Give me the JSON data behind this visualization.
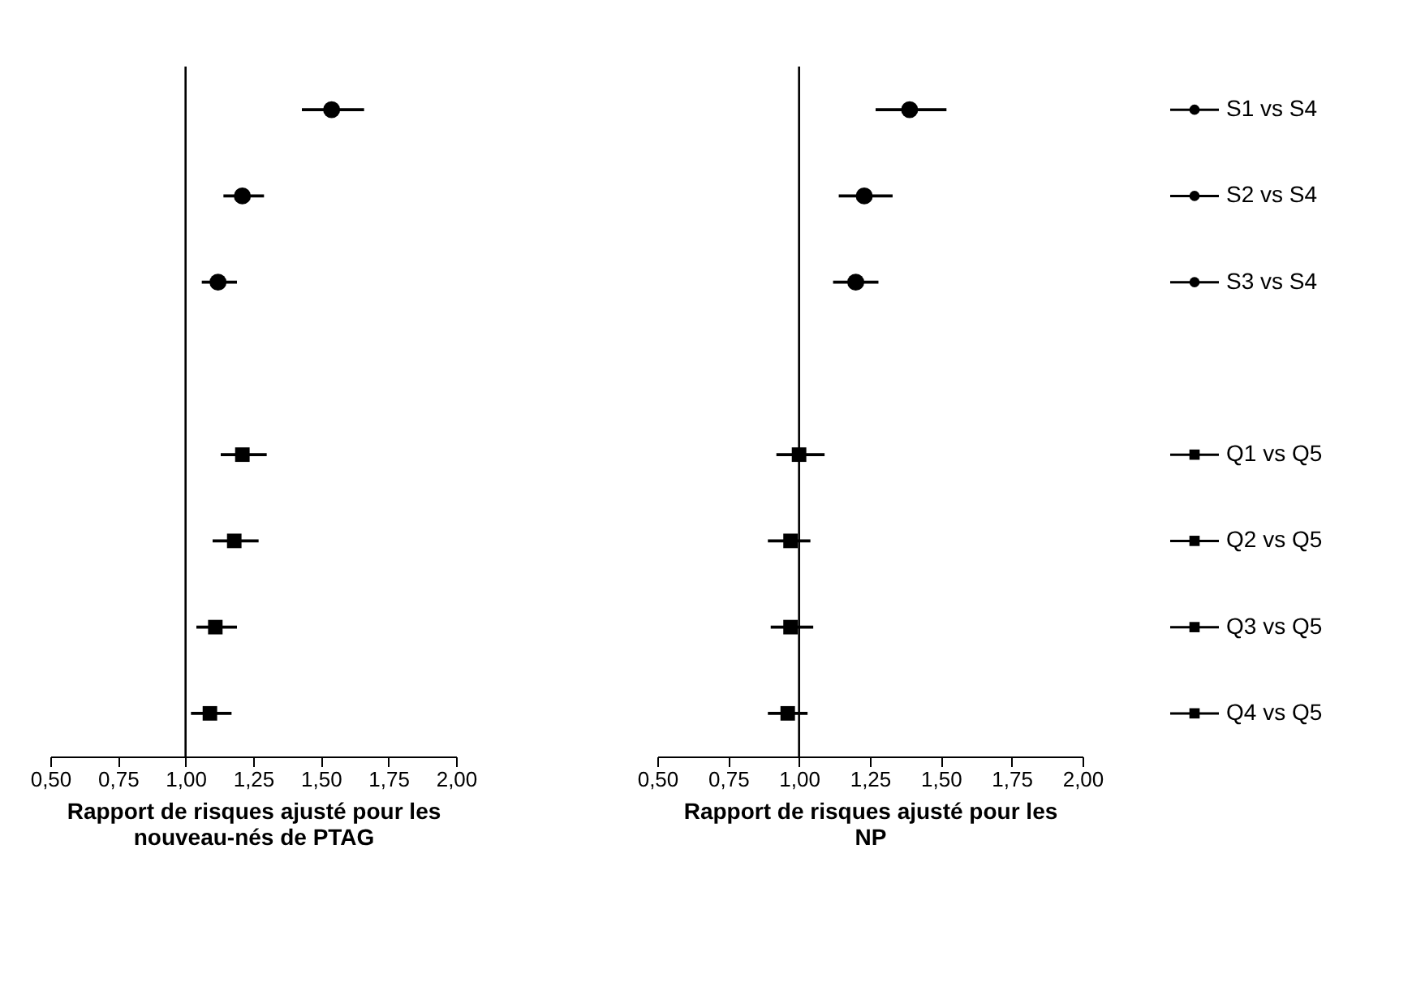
{
  "chart_data": [
    {
      "type": "scatter",
      "orientation": "horizontal",
      "tick_labels": "x",
      "grid": false,
      "categories": [
        null,
        null,
        null,
        null,
        null,
        null,
        null,
        null
      ],
      "series": [
        {
          "color": "#000000",
          "marker": "circle",
          "values": [
            1.54,
            1.21,
            1.12,
            null,
            null,
            null,
            null,
            null
          ],
          "errors": [
            [
              1.43,
              1.66
            ],
            [
              1.14,
              1.29
            ],
            [
              1.06,
              1.19
            ],
            null,
            null,
            null,
            null,
            null
          ]
        },
        {
          "color": "#000000",
          "marker": "square",
          "values": [
            null,
            null,
            null,
            null,
            1.21,
            1.18,
            1.11,
            1.09
          ],
          "errors": [
            null,
            null,
            null,
            null,
            [
              1.13,
              1.3
            ],
            [
              1.1,
              1.27
            ],
            [
              1.04,
              1.19
            ],
            [
              1.02,
              1.17
            ]
          ]
        }
      ],
      "xlim": [
        0.5,
        2.0
      ],
      "xticks": [
        {
          "value": 0.5,
          "label": "0,50"
        },
        {
          "value": 0.75,
          "label": "0,75"
        },
        {
          "value": 1.0,
          "label": "1,00"
        },
        {
          "value": 1.25,
          "label": "1,25"
        },
        {
          "value": 1.5,
          "label": "1,50"
        },
        {
          "value": 1.75,
          "label": "1,75"
        },
        {
          "value": 2.0,
          "label": "2,00"
        }
      ],
      "xlabel": "Rapport de risques ajusté pour les nouveau-nés de PTAG",
      "ref_lines": [
        {
          "axis": "x",
          "value": 1.0
        }
      ]
    },
    {
      "type": "scatter",
      "orientation": "horizontal",
      "grid": false,
      "categories": [
        "S1 vs S4",
        "S2 vs S4",
        "S3 vs S4",
        null,
        "Q1 vs Q5",
        "Q2 vs Q5",
        "Q3 vs Q5",
        "Q4 vs Q5"
      ],
      "series": [
        {
          "color": "#000000",
          "marker": "circle",
          "values": [
            1.39,
            1.23,
            1.2,
            null,
            null,
            null,
            null,
            null
          ],
          "errors": [
            [
              1.27,
              1.52
            ],
            [
              1.14,
              1.33
            ],
            [
              1.12,
              1.28
            ],
            null,
            null,
            null,
            null,
            null
          ]
        },
        {
          "color": "#000000",
          "marker": "square",
          "values": [
            null,
            null,
            null,
            null,
            1.0,
            0.97,
            0.97,
            0.96
          ],
          "errors": [
            null,
            null,
            null,
            null,
            [
              0.92,
              1.09
            ],
            [
              0.89,
              1.04
            ],
            [
              0.9,
              1.05
            ],
            [
              0.89,
              1.03
            ]
          ]
        }
      ],
      "xlim": [
        0.5,
        2.0
      ],
      "xticks": [
        {
          "value": 0.5,
          "label": "0,50"
        },
        {
          "value": 0.75,
          "label": "0,75"
        },
        {
          "value": 1.0,
          "label": "1,00"
        },
        {
          "value": 1.25,
          "label": "1,25"
        },
        {
          "value": 1.5,
          "label": "1,50"
        },
        {
          "value": 1.75,
          "label": "1,75"
        },
        {
          "value": 2.0,
          "label": "2,00"
        }
      ],
      "xlabel": "Rapport de risques ajusté pour les NP",
      "ref_lines": [
        {
          "axis": "x",
          "value": 1.0
        }
      ]
    }
  ]
}
